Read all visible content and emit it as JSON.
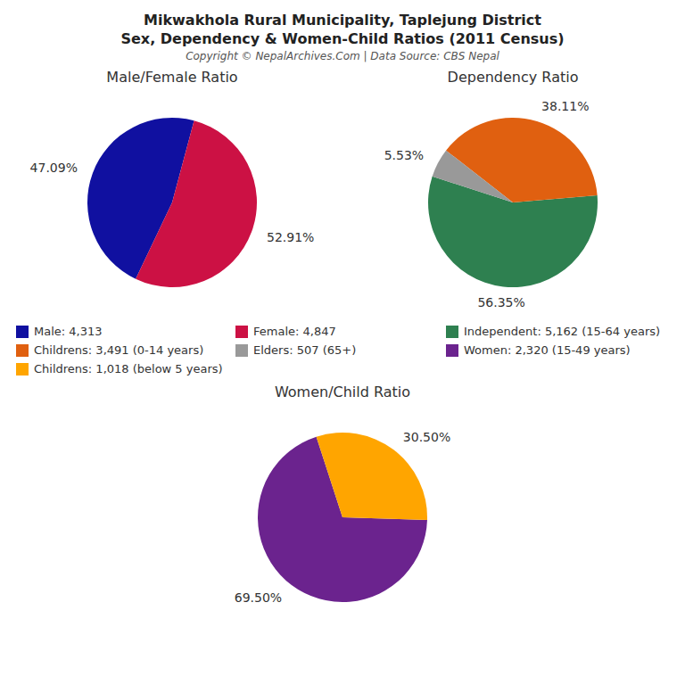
{
  "title": "Mikwakhola Rural Municipality, Taplejung District\nSex, Dependency & Women-Child Ratios (2011 Census)",
  "subtitle": "Copyright © NepalArchives.Com | Data Source: CBS Nepal",
  "chart_data": [
    {
      "type": "pie",
      "title": "Male/Female Ratio",
      "categories": [
        "Male: 4,313",
        "Female: 4,847"
      ],
      "values": [
        47.09,
        52.91
      ],
      "value_labels": [
        "47.09%",
        "52.91%"
      ],
      "colors": [
        "#1010A0",
        "#CC1144"
      ],
      "data_labels": true
    },
    {
      "type": "pie",
      "title": "Dependency Ratio",
      "categories": [
        "Independent: 5,162 (15-64 years)",
        "Childrens: 3,491 (0-14 years)",
        "Elders: 507 (65+)"
      ],
      "values": [
        56.35,
        38.11,
        5.53
      ],
      "value_labels": [
        "56.35%",
        "38.11%",
        "5.53%"
      ],
      "colors": [
        "#2E8050",
        "#E06010",
        "#999999"
      ],
      "data_labels": true
    },
    {
      "type": "pie",
      "title": "Women/Child Ratio",
      "categories": [
        "Women: 2,320 (15-49 years)",
        "Childrens: 1,018 (below 5 years)"
      ],
      "values": [
        69.5,
        30.5
      ],
      "value_labels": [
        "69.50%",
        "30.50%"
      ],
      "colors": [
        "#6B238E",
        "#FFA500"
      ],
      "data_labels": true
    }
  ]
}
